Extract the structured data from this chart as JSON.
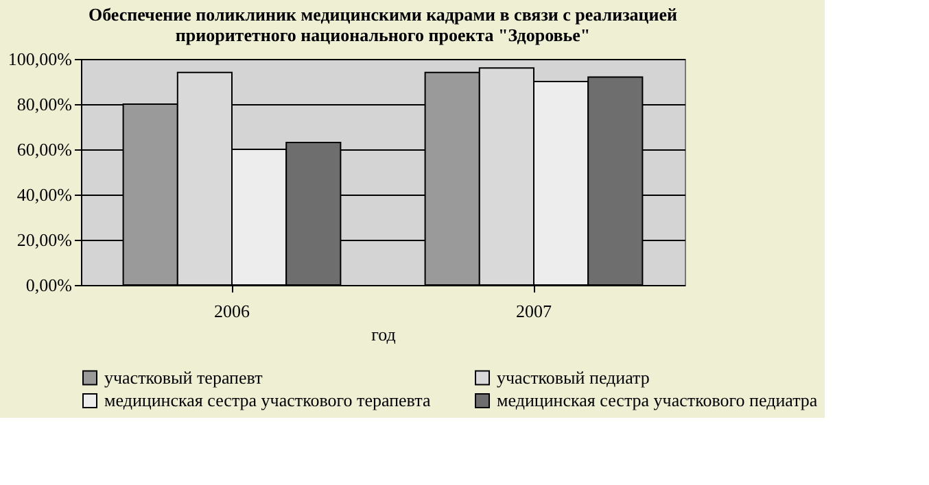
{
  "chart_data": {
    "type": "bar",
    "title": "Обеспечение поликлиник медицинскими кадрами в связи с реализацией приоритетного национального проекта \"Здоровье\"",
    "xlabel": "год",
    "categories": [
      "2006",
      "2007"
    ],
    "series": [
      {
        "name": "участковый терапевт",
        "color": "#9a9a9a",
        "values": [
          80,
          94
        ]
      },
      {
        "name": "участковый педиатр",
        "color": "#d9d9d9",
        "values": [
          94,
          96
        ]
      },
      {
        "name": "медицинская сестра участкового терапевта",
        "color": "#ededed",
        "values": [
          60,
          90
        ]
      },
      {
        "name": "медицинская сестра участкового педиатра",
        "color": "#6e6e6e",
        "values": [
          63,
          92
        ]
      }
    ],
    "ylim": [
      0,
      100
    ],
    "yticks": [
      {
        "value": 0,
        "label": "0,00%"
      },
      {
        "value": 20,
        "label": "20,00%"
      },
      {
        "value": 40,
        "label": "40,00%"
      },
      {
        "value": 60,
        "label": "60,00%"
      },
      {
        "value": 80,
        "label": "80,00%"
      },
      {
        "value": 100,
        "label": "100,00%"
      }
    ],
    "grid": "y",
    "legend": "bottom"
  }
}
